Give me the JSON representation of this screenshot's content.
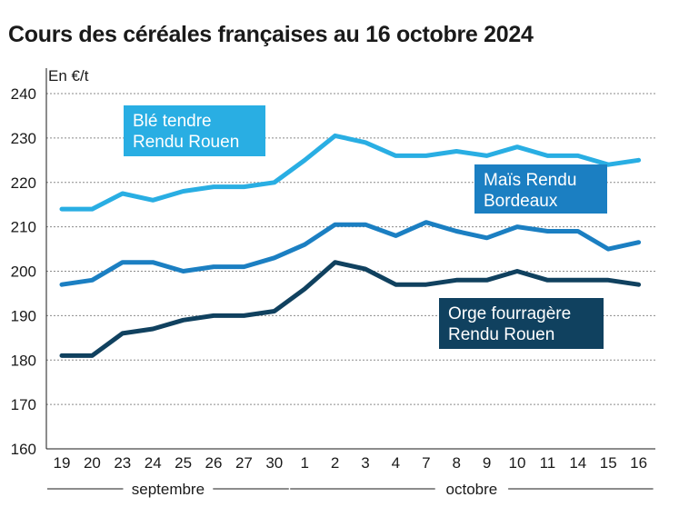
{
  "title": "Cours des céréales françaises au 16 octobre 2024",
  "chart_data": {
    "type": "line",
    "title": "Cours des céréales françaises au 16 octobre 2024",
    "ylabel": "En €/t",
    "ylim": [
      160,
      240
    ],
    "yticks": [
      160,
      170,
      180,
      190,
      200,
      210,
      220,
      230,
      240
    ],
    "grid": true,
    "categories": [
      "19",
      "20",
      "23",
      "24",
      "25",
      "26",
      "27",
      "30",
      "1",
      "2",
      "3",
      "4",
      "7",
      "8",
      "9",
      "10",
      "11",
      "14",
      "15",
      "16"
    ],
    "groups": [
      {
        "label": "septembre",
        "from": 0,
        "to": 7
      },
      {
        "label": "octobre",
        "from": 8,
        "to": 19
      }
    ],
    "series": [
      {
        "name": "Blé tendre Rendu Rouen",
        "label_lines": [
          "Blé tendre",
          "Rendu Rouen"
        ],
        "color": "#29aee3",
        "values": [
          214,
          214,
          217.5,
          216,
          218,
          219,
          219,
          220,
          225,
          230.5,
          229,
          226,
          226,
          227,
          226,
          228,
          226,
          226,
          224,
          225
        ]
      },
      {
        "name": "Maïs Rendu Bordeaux",
        "label_lines": [
          "Maïs Rendu",
          "Bordeaux"
        ],
        "color": "#1b7fc2",
        "values": [
          197,
          198,
          202,
          202,
          200,
          201,
          201,
          203,
          206,
          210.5,
          210.5,
          208,
          211,
          209,
          207.5,
          210,
          209,
          209,
          205,
          206.5
        ]
      },
      {
        "name": "Orge fourragère Rendu Rouen",
        "label_lines": [
          "Orge fourragère",
          "Rendu Rouen"
        ],
        "color": "#10415f",
        "values": [
          181,
          181,
          186,
          187,
          189,
          190,
          190,
          191,
          196,
          202,
          200.5,
          197,
          197,
          198,
          198,
          200,
          198,
          198,
          198,
          197
        ]
      }
    ]
  }
}
